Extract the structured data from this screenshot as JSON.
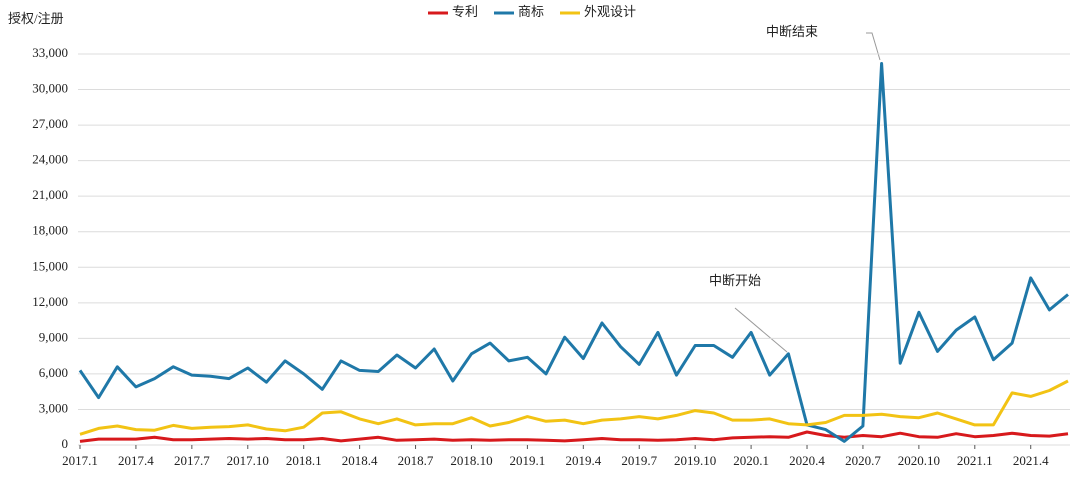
{
  "chart_data": {
    "type": "line",
    "y_label": "授权/注册",
    "categories": [
      "2017.1",
      null,
      null,
      "2017.4",
      null,
      null,
      "2017.7",
      null,
      null,
      "2017.10",
      null,
      null,
      "2018.1",
      null,
      null,
      "2018.4",
      null,
      null,
      "2018.7",
      null,
      null,
      "2018.10",
      null,
      null,
      "2019.1",
      null,
      null,
      "2019.4",
      null,
      null,
      "2019.7",
      null,
      null,
      "2019.10",
      null,
      null,
      "2020.1",
      null,
      null,
      "2020.4",
      null,
      null,
      "2020.7",
      null,
      null,
      "2020.10",
      null,
      null,
      "2021.1",
      null,
      null,
      "2021.4",
      null,
      null
    ],
    "series": [
      {
        "name": "专利",
        "color": "#d7191c",
        "values": [
          300,
          500,
          500,
          500,
          650,
          450,
          450,
          500,
          550,
          500,
          550,
          450,
          450,
          550,
          350,
          500,
          650,
          400,
          450,
          500,
          400,
          450,
          400,
          450,
          450,
          400,
          350,
          450,
          550,
          450,
          450,
          400,
          450,
          550,
          450,
          600,
          650,
          700,
          650,
          1100,
          800,
          650,
          800,
          700,
          1000,
          700,
          650,
          950,
          700,
          800,
          1000,
          800,
          750,
          950
        ]
      },
      {
        "name": "商标",
        "color": "#1f78a8",
        "values": [
          6300,
          4000,
          6600,
          4900,
          5600,
          6600,
          5900,
          5800,
          5600,
          6500,
          5300,
          7100,
          6000,
          4700,
          7100,
          6300,
          6200,
          7600,
          6500,
          8100,
          5400,
          7700,
          8600,
          7100,
          7400,
          6000,
          9100,
          7300,
          10300,
          8300,
          6800,
          9500,
          5900,
          8400,
          8400,
          7400,
          9500,
          5900,
          7700,
          1700,
          1300,
          300,
          1600,
          32200,
          6900,
          11200,
          7900,
          9700,
          10800,
          7200,
          8600,
          14100,
          11400,
          12700
        ]
      },
      {
        "name": "外观设计",
        "color": "#f2c314",
        "values": [
          900,
          1400,
          1600,
          1300,
          1250,
          1650,
          1400,
          1500,
          1550,
          1700,
          1350,
          1200,
          1500,
          2700,
          2800,
          2200,
          1800,
          2200,
          1700,
          1800,
          1800,
          2300,
          1600,
          1900,
          2400,
          2000,
          2100,
          1800,
          2100,
          2200,
          2400,
          2200,
          2500,
          2900,
          2700,
          2100,
          2100,
          2200,
          1800,
          1700,
          1900,
          2500,
          2500,
          2600,
          2400,
          2300,
          2700,
          2200,
          1700,
          1700,
          4400,
          4100,
          4600,
          5400
        ]
      }
    ],
    "ylim": [
      0,
      33000
    ],
    "yticks": [
      0,
      {
        "value": 3000,
        "label": "3,000"
      },
      {
        "value": 6000,
        "label": "6,000"
      },
      {
        "value": 9000,
        "label": "9,000"
      },
      {
        "value": 12000,
        "label": "12,000"
      },
      {
        "value": 15000,
        "label": "15,000"
      },
      {
        "value": 18000,
        "label": "18,000"
      },
      {
        "value": 21000,
        "label": "21,000"
      },
      {
        "value": 24000,
        "label": "24,000"
      },
      {
        "value": 27000,
        "label": "27,000"
      },
      {
        "value": 30000,
        "label": "30,000"
      },
      {
        "value": 33000,
        "label": "33,000"
      }
    ],
    "grid": true,
    "legend": "top",
    "annotations": [
      {
        "text": "中断开始"
      },
      {
        "text": "中断结束"
      }
    ]
  }
}
